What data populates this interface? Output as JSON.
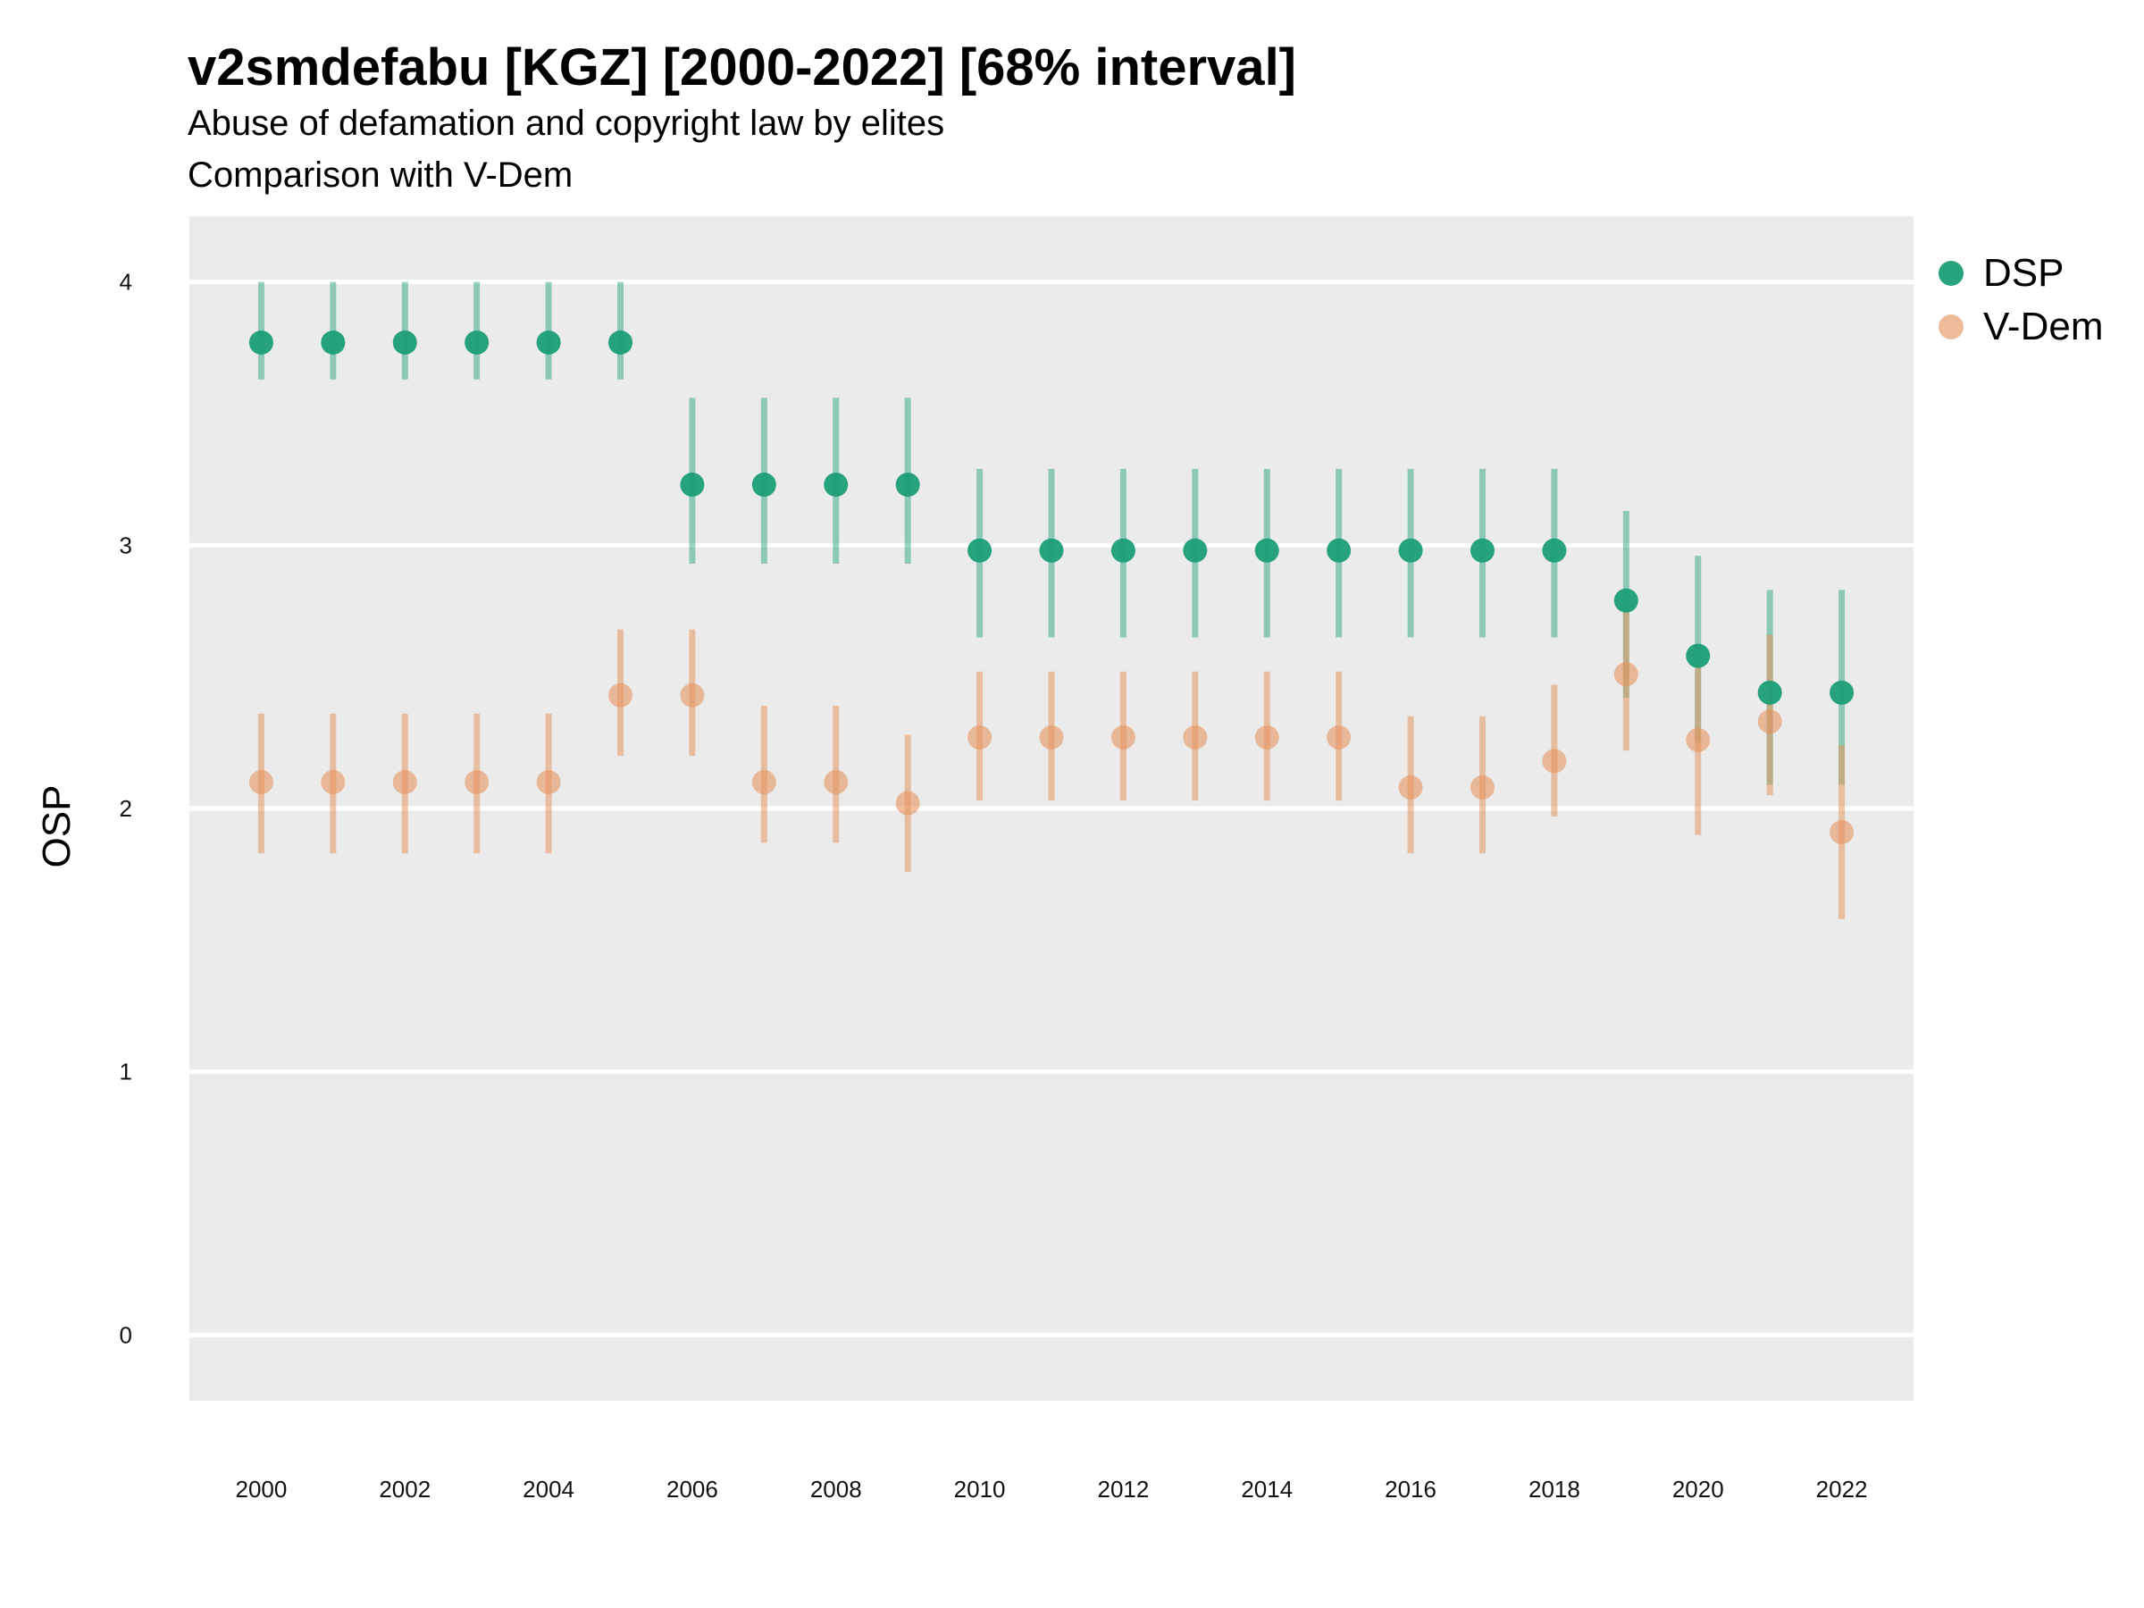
{
  "title": "v2smdefabu [KGZ] [2000-2022] [68% interval]",
  "subtitle_line1": "Abuse of defamation and copyright law by elites",
  "subtitle_line2": "Comparison with V-Dem",
  "colors": {
    "dsp": "#1b9e77",
    "vdem": "#e6955f",
    "panel": "#ebebeb",
    "grid": "#ffffff"
  },
  "chart_data": {
    "type": "scatter",
    "title": "v2smdefabu [KGZ] [2000-2022] [68% interval]",
    "ylabel": "OSP",
    "xlabel": "",
    "xlim": [
      1999,
      2023
    ],
    "ylim": [
      -0.25,
      4.25
    ],
    "yticks": [
      0,
      1,
      2,
      3,
      4
    ],
    "xticks": [
      2000,
      2002,
      2004,
      2006,
      2008,
      2010,
      2012,
      2014,
      2016,
      2018,
      2020,
      2022
    ],
    "grid": true,
    "legend_position": "right",
    "x": [
      2000,
      2001,
      2002,
      2003,
      2004,
      2005,
      2006,
      2007,
      2008,
      2009,
      2010,
      2011,
      2012,
      2013,
      2014,
      2015,
      2016,
      2017,
      2018,
      2019,
      2020,
      2021,
      2022
    ],
    "series": [
      {
        "name": "DSP",
        "values": [
          3.77,
          3.77,
          3.77,
          3.77,
          3.77,
          3.77,
          3.23,
          3.23,
          3.23,
          3.23,
          2.98,
          2.98,
          2.98,
          2.98,
          2.98,
          2.98,
          2.98,
          2.98,
          2.98,
          2.79,
          2.58,
          2.44,
          2.44
        ],
        "lower": [
          3.63,
          3.63,
          3.63,
          3.63,
          3.63,
          3.63,
          2.93,
          2.93,
          2.93,
          2.93,
          2.65,
          2.65,
          2.65,
          2.65,
          2.65,
          2.65,
          2.65,
          2.65,
          2.65,
          2.42,
          2.25,
          2.09,
          2.09
        ],
        "upper": [
          4.0,
          4.0,
          4.0,
          4.0,
          4.0,
          4.0,
          3.56,
          3.56,
          3.56,
          3.56,
          3.29,
          3.29,
          3.29,
          3.29,
          3.29,
          3.29,
          3.29,
          3.29,
          3.29,
          3.13,
          2.96,
          2.83,
          2.83
        ]
      },
      {
        "name": "V-Dem",
        "values": [
          2.1,
          2.1,
          2.1,
          2.1,
          2.1,
          2.43,
          2.43,
          2.1,
          2.1,
          2.02,
          2.27,
          2.27,
          2.27,
          2.27,
          2.27,
          2.27,
          2.08,
          2.08,
          2.18,
          2.51,
          2.26,
          2.33,
          1.91
        ],
        "lower": [
          1.83,
          1.83,
          1.83,
          1.83,
          1.83,
          2.2,
          2.2,
          1.87,
          1.87,
          1.76,
          2.03,
          2.03,
          2.03,
          2.03,
          2.03,
          2.03,
          1.83,
          1.83,
          1.97,
          2.22,
          1.9,
          2.05,
          1.58
        ],
        "upper": [
          2.36,
          2.36,
          2.36,
          2.36,
          2.36,
          2.68,
          2.68,
          2.39,
          2.39,
          2.28,
          2.52,
          2.52,
          2.52,
          2.52,
          2.52,
          2.52,
          2.35,
          2.35,
          2.47,
          2.75,
          2.55,
          2.66,
          2.24
        ]
      }
    ]
  }
}
